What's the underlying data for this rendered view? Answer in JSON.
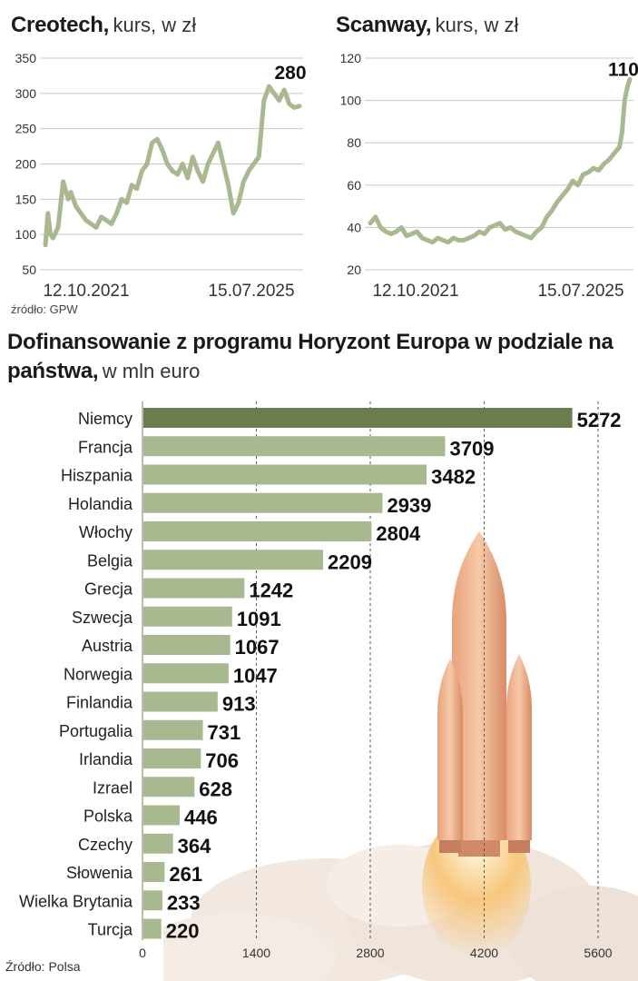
{
  "chart_data": [
    {
      "type": "line",
      "title": "Creotech,",
      "subtitle": "kurs, w zł",
      "ylim": [
        50,
        350
      ],
      "yticks": [
        "350",
        "300",
        "250",
        "200",
        "150",
        "100",
        "50"
      ],
      "x_labels": [
        "12.10.2021",
        "15.07.2025"
      ],
      "last_label": "280",
      "line_color": "#a9b98f",
      "series": [
        {
          "x": [
            0,
            0.01,
            0.02,
            0.03,
            0.05,
            0.07,
            0.09,
            0.1,
            0.12,
            0.14,
            0.16,
            0.18,
            0.2,
            0.22,
            0.24,
            0.26,
            0.28,
            0.3,
            0.32,
            0.34,
            0.36,
            0.38,
            0.4,
            0.42,
            0.44,
            0.46,
            0.48,
            0.5,
            0.52,
            0.54,
            0.56,
            0.58,
            0.6,
            0.62,
            0.64,
            0.66,
            0.68,
            0.7,
            0.72,
            0.74,
            0.76,
            0.78,
            0.8,
            0.82,
            0.84,
            0.86,
            0.88,
            0.9,
            0.92,
            0.94,
            0.96,
            0.98,
            1.0
          ],
          "values": [
            85,
            130,
            100,
            95,
            110,
            175,
            150,
            160,
            140,
            130,
            120,
            115,
            110,
            125,
            120,
            115,
            130,
            150,
            145,
            170,
            165,
            190,
            200,
            230,
            235,
            220,
            200,
            190,
            185,
            200,
            180,
            210,
            190,
            175,
            200,
            215,
            230,
            200,
            170,
            130,
            145,
            175,
            190,
            200,
            210,
            290,
            310,
            300,
            290,
            305,
            285,
            280,
            282
          ]
        }
      ]
    },
    {
      "type": "line",
      "title": "Scanway,",
      "subtitle": "kurs, w zł",
      "ylim": [
        20,
        120
      ],
      "yticks": [
        "120",
        "100",
        "80",
        "60",
        "40",
        "20"
      ],
      "x_labels": [
        "12.10.2021",
        "15.07.2025"
      ],
      "last_label": "110",
      "line_color": "#a9b98f",
      "series": [
        {
          "x": [
            0,
            0.02,
            0.04,
            0.06,
            0.08,
            0.1,
            0.12,
            0.14,
            0.16,
            0.18,
            0.2,
            0.22,
            0.24,
            0.26,
            0.28,
            0.3,
            0.32,
            0.34,
            0.36,
            0.38,
            0.4,
            0.42,
            0.44,
            0.46,
            0.48,
            0.5,
            0.52,
            0.54,
            0.56,
            0.58,
            0.6,
            0.62,
            0.64,
            0.66,
            0.68,
            0.7,
            0.72,
            0.74,
            0.76,
            0.78,
            0.8,
            0.82,
            0.84,
            0.86,
            0.88,
            0.9,
            0.92,
            0.94,
            0.96,
            0.97,
            0.98,
            0.99,
            1.0
          ],
          "values": [
            42,
            45,
            40,
            38,
            37,
            38,
            40,
            36,
            37,
            38,
            35,
            34,
            33,
            35,
            34,
            33,
            35,
            34,
            34,
            35,
            36,
            38,
            37,
            40,
            41,
            42,
            39,
            40,
            38,
            37,
            36,
            35,
            38,
            40,
            45,
            48,
            52,
            55,
            58,
            62,
            60,
            65,
            66,
            68,
            67,
            70,
            72,
            75,
            78,
            85,
            100,
            106,
            110
          ]
        }
      ]
    },
    {
      "type": "bar",
      "orientation": "horizontal",
      "title": "Dofinansowanie z programu Horyzont Europa w podziale na państwa,",
      "subtitle": "w mln euro",
      "categories": [
        "Niemcy",
        "Francja",
        "Hiszpania",
        "Holandia",
        "Włochy",
        "Belgia",
        "Grecja",
        "Szwecja",
        "Austria",
        "Norwegia",
        "Finlandia",
        "Portugalia",
        "Irlandia",
        "Izrael",
        "Polska",
        "Czechy",
        "Słowenia",
        "Wielka Brytania",
        "Turcja"
      ],
      "values": [
        5272,
        3709,
        3482,
        2939,
        2804,
        2209,
        1242,
        1091,
        1067,
        1047,
        913,
        731,
        706,
        628,
        446,
        364,
        261,
        233,
        220
      ],
      "value_labels": [
        "5272",
        "3709",
        "3482",
        "2939",
        "2804",
        "2209",
        "1242",
        "1091",
        "1067",
        "1047",
        "913",
        "731",
        "706",
        "628",
        "446",
        "364",
        "261",
        "233",
        "220"
      ],
      "xlim": [
        0,
        5600
      ],
      "xticks": [
        "0",
        "1400",
        "2800",
        "4200",
        "5600"
      ],
      "highlight_color": "#6b7d4d",
      "bar_color": "#a9b98f",
      "grid": "dashed vertical"
    }
  ],
  "sources": {
    "top": "źródło: GPW",
    "bottom": "Źródło: Polsa"
  }
}
